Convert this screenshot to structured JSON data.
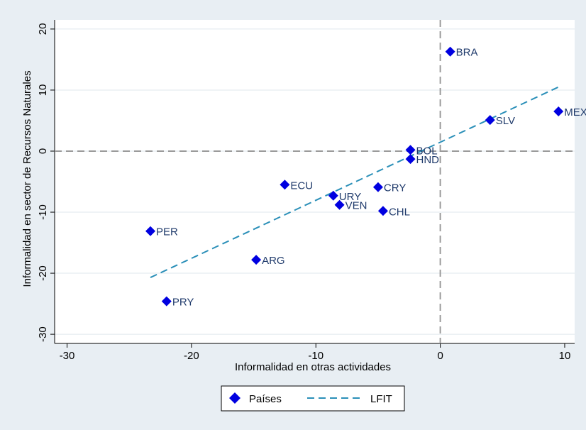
{
  "chart_data": {
    "type": "scatter",
    "title": "",
    "xlabel": "Informalidad en otras actividades",
    "ylabel": "Informalidad en sector de Recursos Naturales",
    "xlim": [
      -31,
      10.8
    ],
    "ylim": [
      -31.5,
      21.5
    ],
    "xticks": [
      -30,
      -20,
      -10,
      0,
      10
    ],
    "yticks": [
      20,
      10,
      0,
      -10,
      -20,
      -30
    ],
    "reference_lines": {
      "x": 0,
      "y": 0
    },
    "grid": true,
    "legend_position": "bottom",
    "colors": {
      "points": "#0000e0",
      "fit_line": "#2a8fb8",
      "reference": "#9a9a9a",
      "grid": "#dfe7ee",
      "plot_background": "#ffffff",
      "outer_background": "#e8eef3",
      "label": "#1f3a6b"
    },
    "series": [
      {
        "name": "Países",
        "marker": "diamond",
        "points": [
          {
            "label": "BRA",
            "x": 0.8,
            "y": 16.3
          },
          {
            "label": "MEX",
            "x": 9.5,
            "y": 6.5
          },
          {
            "label": "SLV",
            "x": 4.0,
            "y": 5.1
          },
          {
            "label": "BOL",
            "x": -2.4,
            "y": 0.2
          },
          {
            "label": "HND",
            "x": -2.4,
            "y": -1.3
          },
          {
            "label": "ECU",
            "x": -12.5,
            "y": -5.5
          },
          {
            "label": "CRY",
            "x": -5.0,
            "y": -5.9
          },
          {
            "label": "URY",
            "x": -8.6,
            "y": -7.3
          },
          {
            "label": "VEN",
            "x": -8.1,
            "y": -8.8
          },
          {
            "label": "CHL",
            "x": -4.6,
            "y": -9.8
          },
          {
            "label": "PER",
            "x": -23.3,
            "y": -13.1
          },
          {
            "label": "ARG",
            "x": -14.8,
            "y": -17.8
          },
          {
            "label": "PRY",
            "x": -22.0,
            "y": -24.6
          }
        ]
      },
      {
        "name": "LFIT",
        "type": "line",
        "dashed": true,
        "x": [
          -23.3,
          9.5
        ],
        "y": [
          -20.7,
          10.5
        ]
      }
    ]
  }
}
